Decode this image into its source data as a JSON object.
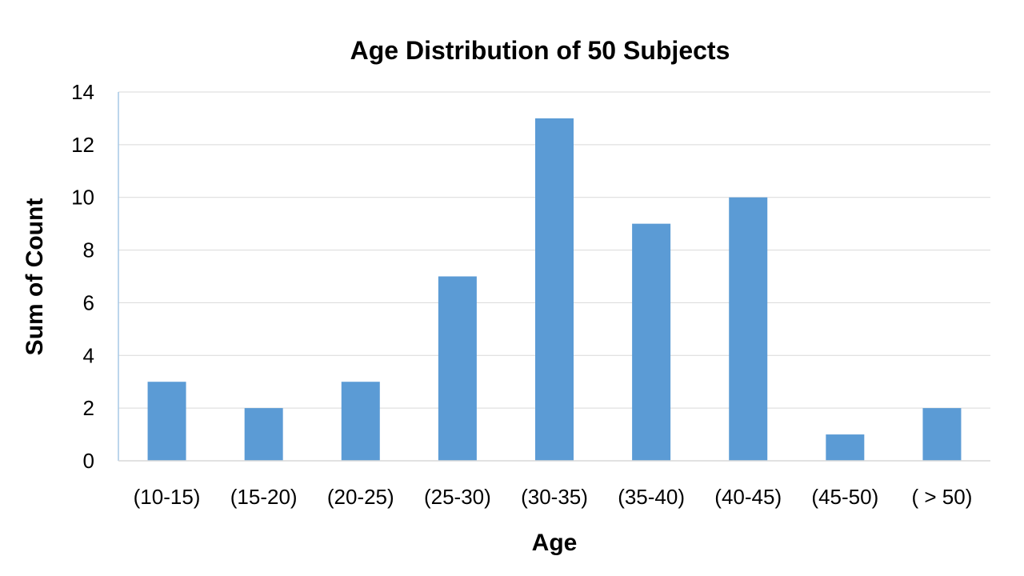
{
  "chart_data": {
    "type": "bar",
    "title": "Age Distribution of 50 Subjects",
    "xlabel": "Age",
    "ylabel": "Sum of Count",
    "categories": [
      "(10-15)",
      "(15-20)",
      "(20-25)",
      "(25-30)",
      "(30-35)",
      "(35-40)",
      "(40-45)",
      "(45-50)",
      "( > 50)"
    ],
    "values": [
      3,
      2,
      3,
      7,
      13,
      9,
      10,
      1,
      2
    ],
    "ylim": [
      0,
      14
    ],
    "yticks": [
      0,
      2,
      4,
      6,
      8,
      10,
      12,
      14
    ],
    "grid": true,
    "legend": "none",
    "colors": {
      "bar": "#5b9bd5"
    }
  }
}
